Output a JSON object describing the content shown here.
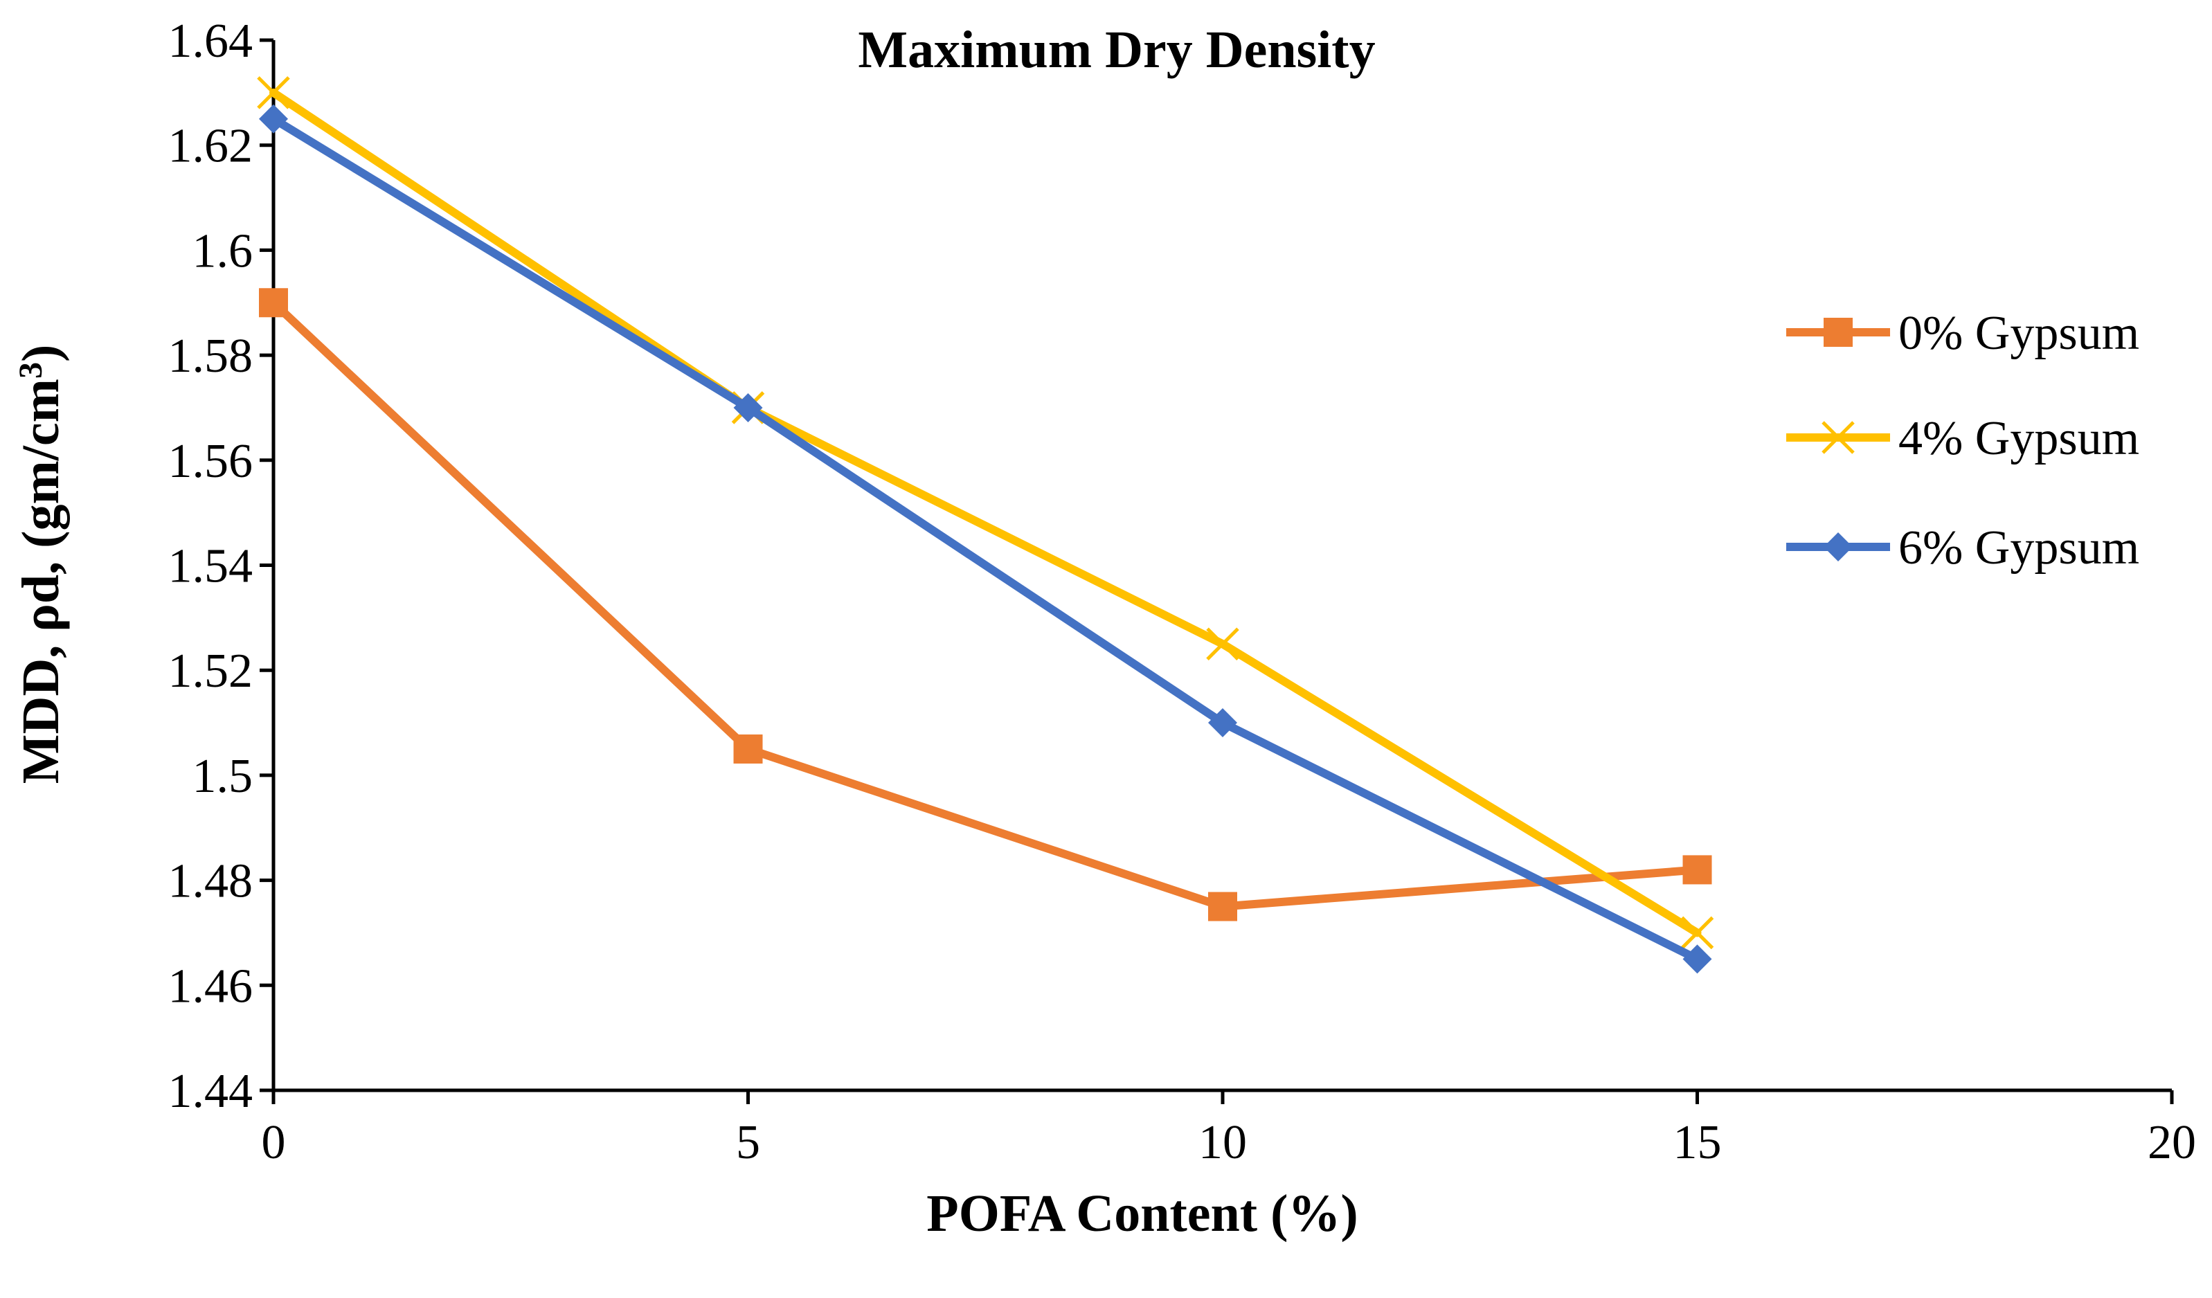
{
  "chart_data": {
    "type": "line",
    "title": "Maximum Dry Density",
    "xlabel": "POFA Content (%)",
    "ylabel_main": "MDD, ρd, (gm/cm",
    "ylabel_sup": "3",
    "ylabel_close": ")",
    "xlim": [
      0,
      20
    ],
    "ylim": [
      1.44,
      1.64
    ],
    "x_ticks": [
      0,
      5,
      10,
      15,
      20
    ],
    "y_ticks": [
      1.44,
      1.46,
      1.48,
      1.5,
      1.52,
      1.54,
      1.56,
      1.58,
      1.6,
      1.62,
      1.64
    ],
    "x_tick_labels": [
      "0",
      "5",
      "10",
      "15",
      "20"
    ],
    "y_tick_labels": [
      "1.44",
      "1.46",
      "1.48",
      "1.5",
      "1.52",
      "1.54",
      "1.56",
      "1.58",
      "1.6",
      "1.62",
      "1.64"
    ],
    "grid": false,
    "legend_position": "right",
    "x": [
      0,
      5,
      10,
      15
    ],
    "series": [
      {
        "name": "0% Gypsum",
        "values": [
          1.59,
          1.505,
          1.475,
          1.482
        ],
        "color": "#ED7D31",
        "marker": "square"
      },
      {
        "name": "4% Gypsum",
        "values": [
          1.63,
          1.57,
          1.525,
          1.47
        ],
        "color": "#FFC000",
        "marker": "x"
      },
      {
        "name": "6% Gypsum",
        "values": [
          1.625,
          1.57,
          1.51,
          1.465
        ],
        "color": "#4472C4",
        "marker": "diamond"
      }
    ]
  }
}
